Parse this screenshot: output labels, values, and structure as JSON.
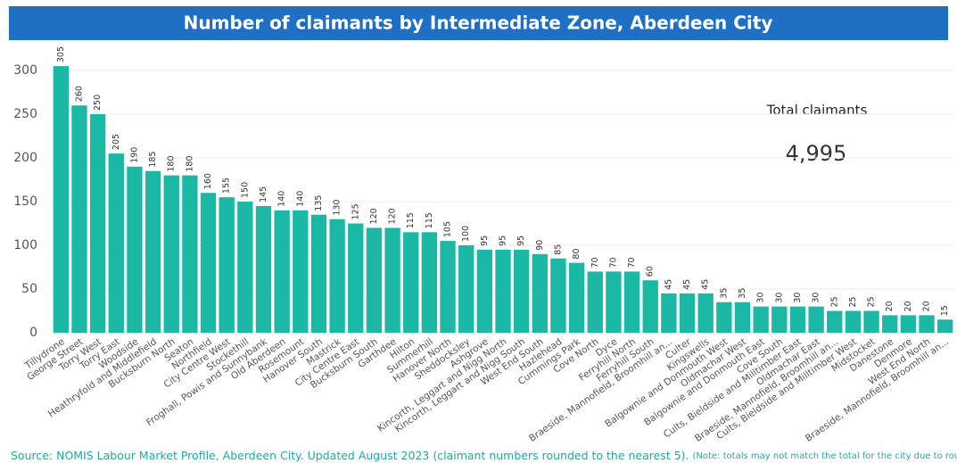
{
  "chart_data": {
    "type": "bar",
    "title": "Number of claimants by Intermediate Zone, Aberdeen City",
    "categories": [
      "Tillydrone",
      "George Street",
      "Torry West",
      "Torry East",
      "Woodside",
      "Heathryfold and Middlefield",
      "Bucksburn North",
      "Seaton",
      "Northfield",
      "City Centre West",
      "Stockethill",
      "Froghall, Powis and Sunnybank",
      "Old Aberdeen",
      "Rosemount",
      "Hanover South",
      "Mastrick",
      "City Centre East",
      "Bucksburn South",
      "Garthdee",
      "Hilton",
      "Summerhill",
      "Hanover North",
      "Sheddocksley",
      "Ashgrove",
      "Kincorth, Leggart and Nigg North",
      "Kincorth, Leggart and Nigg South",
      "West End South",
      "Hazlehead",
      "Cummings Park",
      "Cove North",
      "Dyce",
      "Ferryhill North",
      "Ferryhill South",
      "Braeside, Mannofield, Broomhill an...",
      "Culter",
      "Kingswells",
      "Balgownie and Donmouth West",
      "Oldmachar West",
      "Balgownie and Donmouth East",
      "Cove South",
      "Cults, Bieldside and Milltimber East",
      "Oldmachar East",
      "Braeside, Mannofield, Broomhill an...",
      "Cults, Bieldside and Milltimber West",
      "Midstocket",
      "Danestone",
      "Denmore",
      "West End North",
      "Braeside, Mannofield, Broomhill an..."
    ],
    "values": [
      305,
      260,
      250,
      205,
      190,
      185,
      180,
      180,
      160,
      155,
      150,
      145,
      140,
      140,
      135,
      130,
      125,
      120,
      120,
      115,
      115,
      105,
      100,
      95,
      95,
      95,
      90,
      85,
      80,
      70,
      70,
      70,
      60,
      45,
      45,
      45,
      35,
      35,
      30,
      30,
      30,
      30,
      25,
      25,
      25,
      20,
      20,
      20,
      15
    ],
    "color": "#1bb8a5",
    "ylim": [
      0,
      300
    ],
    "yticks": [
      0,
      50,
      100,
      150,
      200,
      250,
      300
    ],
    "grid": true,
    "total": {
      "title": "Total claimants",
      "value": 4995,
      "value_label": "4,995"
    },
    "source": "Source: NOMIS Labour Market Profile, Aberdeen City.  Updated August 2023 (claimant numbers rounded to the nearest 5).",
    "note": "(Note: totals may not match the total for the city due to rounding)."
  }
}
